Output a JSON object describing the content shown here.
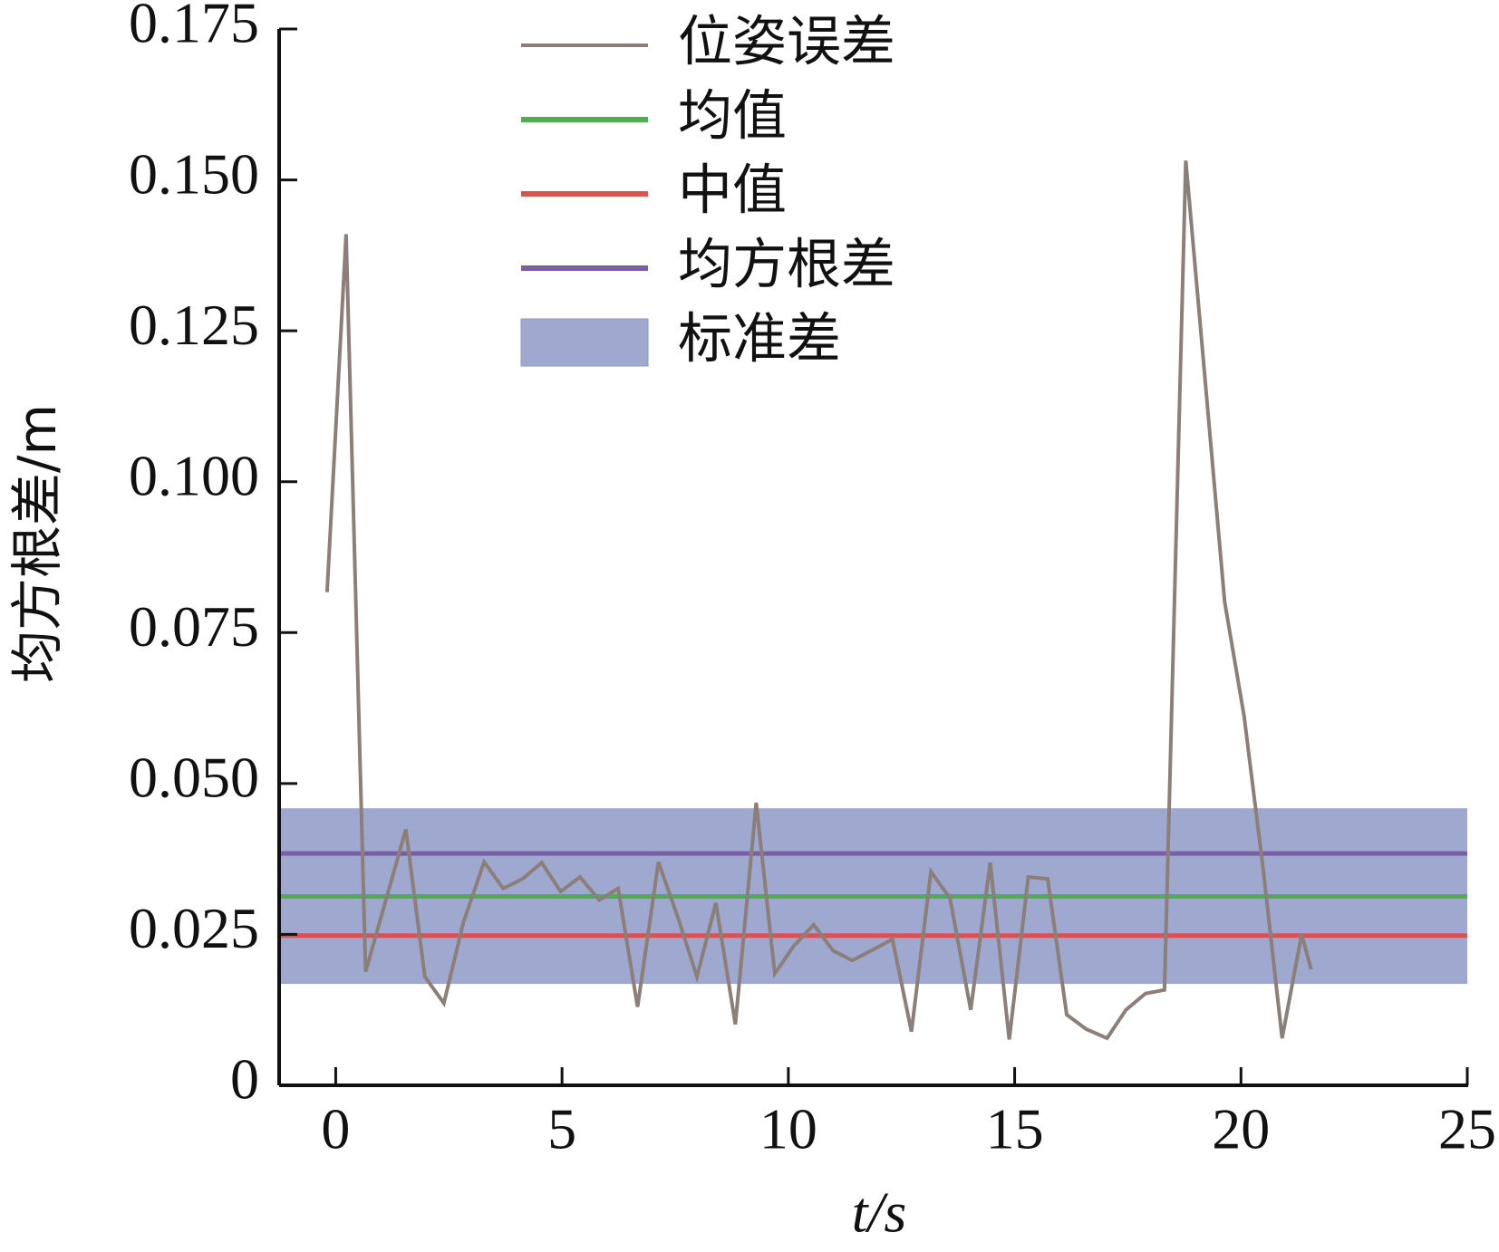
{
  "chart_data": {
    "type": "line",
    "xlabel": "t/s",
    "ylabel": "均方根差/m",
    "xlim": [
      -1.25,
      25
    ],
    "ylim": [
      0,
      0.175
    ],
    "xticks": [
      0,
      5,
      10,
      15,
      20,
      25
    ],
    "yticks": [
      0,
      0.025,
      {
        "value": 0.05,
        "label": "0.050"
      },
      0.075,
      {
        "value": 0.1,
        "label": "0.100"
      },
      0.125,
      {
        "value": 0.15,
        "label": "0.150"
      },
      0.175
    ],
    "series": [
      {
        "name": "位姿误差",
        "color": "#8c7f7a",
        "x": [
          -0.19,
          0.23,
          0.66,
          1.55,
          1.97,
          2.39,
          2.82,
          3.28,
          3.7,
          4.13,
          4.55,
          4.97,
          5.4,
          5.82,
          6.24,
          6.67,
          7.13,
          7.56,
          7.98,
          8.4,
          8.83,
          9.29,
          9.7,
          10.12,
          10.56,
          10.99,
          11.41,
          11.83,
          12.3,
          12.72,
          13.15,
          13.57,
          14.03,
          14.46,
          14.88,
          15.3,
          15.73,
          16.15,
          16.58,
          17.04,
          17.46,
          17.89,
          18.31,
          18.78,
          19.64,
          20.07,
          20.49,
          20.91,
          21.34,
          21.55
        ],
        "values": [
          0.0817,
          0.141,
          0.0188,
          0.0424,
          0.018,
          0.0136,
          0.027,
          0.037,
          0.0326,
          0.0342,
          0.0369,
          0.0321,
          0.0345,
          0.0307,
          0.0326,
          0.013,
          0.037,
          0.0278,
          0.018,
          0.0302,
          0.0101,
          0.0468,
          0.0185,
          0.0231,
          0.0266,
          0.0223,
          0.0207,
          0.0223,
          0.0242,
          0.0089,
          0.0354,
          0.031,
          0.0125,
          0.0369,
          0.0076,
          0.0345,
          0.0342,
          0.0117,
          0.0093,
          0.0078,
          0.0125,
          0.0152,
          0.0158,
          0.1532,
          0.0801,
          0.0611,
          0.0358,
          0.0078,
          0.025,
          0.0192
        ]
      }
    ],
    "hlines": [
      {
        "name": "均值",
        "color": "#4caf50",
        "value": 0.0313
      },
      {
        "name": "中值",
        "color": "#d9534f",
        "value": 0.0248
      },
      {
        "name": "均方根差",
        "color": "#7b5fa6",
        "value": 0.0384
      }
    ],
    "band": {
      "name": "标准差",
      "color": "#7f8cbf",
      "lower": 0.0168,
      "upper": 0.0459
    }
  }
}
